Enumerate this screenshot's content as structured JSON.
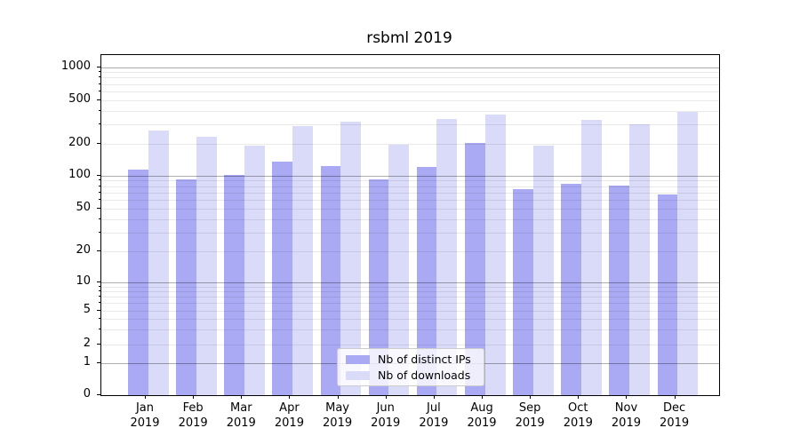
{
  "title": "rsbml 2019",
  "chart_data": {
    "type": "bar",
    "title": "rsbml 2019",
    "categories": [
      "Jan 2019",
      "Feb 2019",
      "Mar 2019",
      "Apr 2019",
      "May 2019",
      "Jun 2019",
      "Jul 2019",
      "Aug 2019",
      "Sep 2019",
      "Oct 2019",
      "Nov 2019",
      "Dec 2019"
    ],
    "series": [
      {
        "name": "Nb of distinct IPs",
        "color": "#a9a9f4",
        "values": [
          113,
          92,
          102,
          135,
          123,
          92,
          120,
          202,
          75,
          84,
          81,
          67
        ]
      },
      {
        "name": "Nb of downloads",
        "color": "#dadaf9",
        "values": [
          265,
          230,
          194,
          290,
          315,
          196,
          338,
          368,
          194,
          327,
          298,
          392
        ]
      }
    ],
    "xlabel": "",
    "ylabel": "",
    "yscale": "symlog",
    "yticks": [
      1000,
      500,
      200,
      100,
      50,
      20,
      10,
      5,
      2,
      1,
      0
    ],
    "ylim": [
      0,
      1400
    ],
    "grid": "horizontal major (decades darker) + minor log gridlines",
    "legend_position": "lower center"
  }
}
